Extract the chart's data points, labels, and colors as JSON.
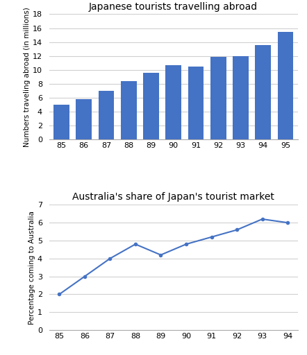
{
  "bar_years": [
    "85",
    "86",
    "87",
    "88",
    "89",
    "90",
    "91",
    "92",
    "93",
    "94",
    "95"
  ],
  "bar_values": [
    5.0,
    5.8,
    7.0,
    8.4,
    9.6,
    10.7,
    10.5,
    11.9,
    12.0,
    13.6,
    15.5
  ],
  "bar_color": "#4472c4",
  "bar_title": "Japanese tourists travelling abroad",
  "bar_ylabel": "Numbers traveling abroad (in millions)",
  "bar_ylim": [
    0,
    18
  ],
  "bar_yticks": [
    0,
    2,
    4,
    6,
    8,
    10,
    12,
    14,
    16,
    18
  ],
  "line_years": [
    "85",
    "86",
    "87",
    "88",
    "89",
    "90",
    "91",
    "92",
    "93",
    "94"
  ],
  "line_values": [
    2.0,
    3.0,
    4.0,
    4.8,
    4.2,
    4.8,
    5.2,
    5.6,
    6.2,
    6.0
  ],
  "line_color": "#4472c4",
  "line_title": "Australia's share of Japan's tourist market",
  "line_ylabel": "Percentage coming to Australia",
  "line_ylim": [
    0,
    7
  ],
  "line_yticks": [
    0,
    1,
    2,
    3,
    4,
    5,
    6,
    7
  ],
  "bg_color": "#ffffff",
  "grid_color": "#d0d0d0",
  "title_fontsize": 10,
  "label_fontsize": 7.5,
  "tick_fontsize": 8
}
